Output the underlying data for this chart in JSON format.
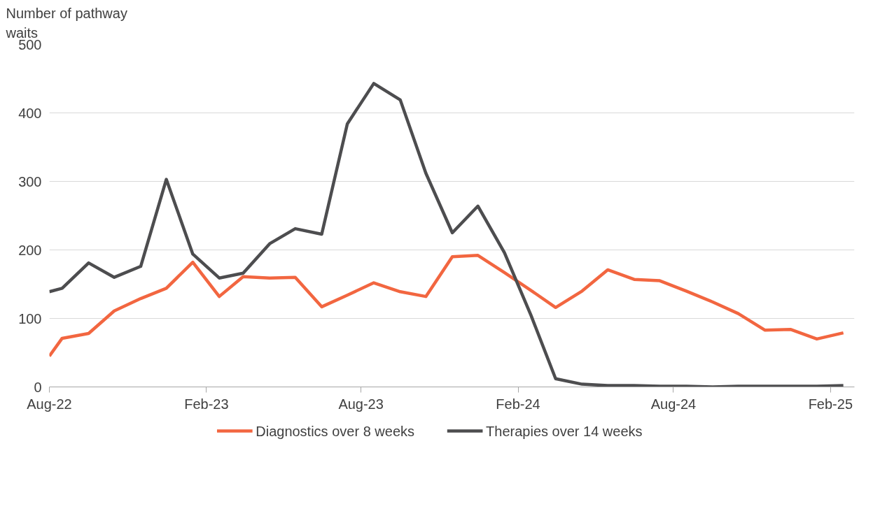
{
  "chart_data": {
    "type": "line",
    "ylabel": "Number of pathway waits",
    "x": [
      "2022-08-01",
      "2022-08-16",
      "2022-09-16",
      "2022-10-16",
      "2022-11-16",
      "2022-12-16",
      "2023-01-16",
      "2023-02-16",
      "2023-03-16",
      "2023-04-16",
      "2023-05-16",
      "2023-06-16",
      "2023-07-16",
      "2023-08-16",
      "2023-09-16",
      "2023-10-16",
      "2023-11-16",
      "2023-12-16",
      "2024-01-16",
      "2024-02-16",
      "2024-03-16",
      "2024-04-16",
      "2024-05-16",
      "2024-06-16",
      "2024-07-16",
      "2024-08-16",
      "2024-09-16",
      "2024-10-16",
      "2024-11-16",
      "2024-12-16",
      "2025-01-16",
      "2025-02-16"
    ],
    "series": [
      {
        "name": "Diagnostics over 8 weeks",
        "color": "#f26640",
        "values": [
          45,
          71,
          78,
          111,
          129,
          144,
          182,
          132,
          161,
          159,
          160,
          117,
          134,
          152,
          139,
          132,
          190,
          192,
          167,
          141,
          116,
          140,
          171,
          157,
          155,
          140,
          124,
          107,
          83,
          84,
          70,
          79
        ]
      },
      {
        "name": "Therapies over 14 weeks",
        "color": "#4d4d4f",
        "values": [
          139,
          144,
          181,
          160,
          176,
          303,
          194,
          159,
          166,
          209,
          231,
          223,
          384,
          443,
          419,
          312,
          225,
          264,
          196,
          105,
          12,
          4,
          2,
          2,
          1,
          1,
          0,
          1,
          1,
          1,
          1,
          2
        ]
      }
    ],
    "xlim": [
      "2022-08-01",
      "2025-03-01"
    ],
    "xticks": [
      {
        "value": "2022-08-01",
        "label": "Aug-22"
      },
      {
        "value": "2023-02-01",
        "label": "Feb-23"
      },
      {
        "value": "2023-08-01",
        "label": "Aug-23"
      },
      {
        "value": "2024-02-01",
        "label": "Feb-24"
      },
      {
        "value": "2024-08-01",
        "label": "Aug-24"
      },
      {
        "value": "2025-02-01",
        "label": "Feb-25"
      }
    ],
    "ylim": [
      0,
      500
    ],
    "yticks": [
      0,
      100,
      200,
      300,
      400,
      500
    ],
    "grid": "y",
    "legend": "bottom",
    "marker": "none",
    "line_style": "solid"
  }
}
